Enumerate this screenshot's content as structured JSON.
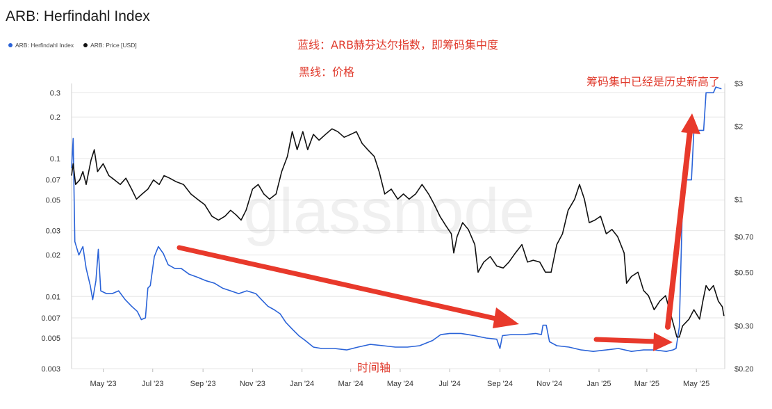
{
  "chart_data": {
    "type": "line",
    "title": "ARB: Herfindahl Index",
    "legend_position": "top-left",
    "grid": true,
    "watermark": "glassnode",
    "colors": {
      "herfindahl": "#2a63d8",
      "price": "#111111",
      "arrow": "#e8392b",
      "annotation": "#e03a2c",
      "grid": "#e6e6e6"
    },
    "x_range": [
      "2023-03-23",
      "2025-06-05"
    ],
    "x_ticks": [
      {
        "date": "2023-05-01",
        "label": "May '23"
      },
      {
        "date": "2023-07-01",
        "label": "Jul '23"
      },
      {
        "date": "2023-09-01",
        "label": "Sep '23"
      },
      {
        "date": "2023-11-01",
        "label": "Nov '23"
      },
      {
        "date": "2024-01-01",
        "label": "Jan '24"
      },
      {
        "date": "2024-03-01",
        "label": "Mar '24"
      },
      {
        "date": "2024-05-01",
        "label": "May '24"
      },
      {
        "date": "2024-07-01",
        "label": "Jul '24"
      },
      {
        "date": "2024-09-01",
        "label": "Sep '24"
      },
      {
        "date": "2024-11-01",
        "label": "Nov '24"
      },
      {
        "date": "2025-01-01",
        "label": "Jan '25"
      },
      {
        "date": "2025-03-01",
        "label": "Mar '25"
      },
      {
        "date": "2025-05-01",
        "label": "May '25"
      }
    ],
    "y_left": {
      "scale": "log",
      "range": [
        0.003,
        0.35
      ],
      "ticks": [
        {
          "value": 0.3,
          "label": "0.3"
        },
        {
          "value": 0.2,
          "label": "0.2"
        },
        {
          "value": 0.1,
          "label": "0.1"
        },
        {
          "value": 0.07,
          "label": "0.07"
        },
        {
          "value": 0.05,
          "label": "0.05"
        },
        {
          "value": 0.03,
          "label": "0.03"
        },
        {
          "value": 0.02,
          "label": "0.02"
        },
        {
          "value": 0.01,
          "label": "0.01"
        },
        {
          "value": 0.007,
          "label": "0.007"
        },
        {
          "value": 0.005,
          "label": "0.005"
        },
        {
          "value": 0.003,
          "label": "0.003"
        }
      ]
    },
    "y_right": {
      "scale": "log",
      "range": [
        0.2,
        3
      ],
      "ticks": [
        {
          "value": 3,
          "label": "$3"
        },
        {
          "value": 2,
          "label": "$2"
        },
        {
          "value": 1,
          "label": "$1"
        },
        {
          "value": 0.7,
          "label": "$0.70"
        },
        {
          "value": 0.5,
          "label": "$0.50"
        },
        {
          "value": 0.3,
          "label": "$0.30"
        },
        {
          "value": 0.2,
          "label": "$0.20"
        }
      ]
    },
    "series": [
      {
        "name": "ARB: Herfindahl Index",
        "axis": "left",
        "points": [
          [
            "2023-03-23",
            0.085
          ],
          [
            "2023-03-25",
            0.14
          ],
          [
            "2023-03-27",
            0.025
          ],
          [
            "2023-04-01",
            0.02
          ],
          [
            "2023-04-06",
            0.023
          ],
          [
            "2023-04-10",
            0.016
          ],
          [
            "2023-04-15",
            0.012
          ],
          [
            "2023-04-18",
            0.0095
          ],
          [
            "2023-04-22",
            0.013
          ],
          [
            "2023-04-25",
            0.022
          ],
          [
            "2023-04-28",
            0.011
          ],
          [
            "2023-05-05",
            0.0105
          ],
          [
            "2023-05-12",
            0.0105
          ],
          [
            "2023-05-20",
            0.011
          ],
          [
            "2023-05-28",
            0.0095
          ],
          [
            "2023-06-05",
            0.0085
          ],
          [
            "2023-06-12",
            0.0078
          ],
          [
            "2023-06-17",
            0.0068
          ],
          [
            "2023-06-22",
            0.007
          ],
          [
            "2023-06-25",
            0.0115
          ],
          [
            "2023-06-28",
            0.012
          ],
          [
            "2023-07-03",
            0.0195
          ],
          [
            "2023-07-08",
            0.023
          ],
          [
            "2023-07-14",
            0.0205
          ],
          [
            "2023-07-20",
            0.017
          ],
          [
            "2023-07-28",
            0.016
          ],
          [
            "2023-08-05",
            0.016
          ],
          [
            "2023-08-15",
            0.0145
          ],
          [
            "2023-08-25",
            0.0138
          ],
          [
            "2023-09-05",
            0.013
          ],
          [
            "2023-09-15",
            0.0125
          ],
          [
            "2023-09-25",
            0.0115
          ],
          [
            "2023-10-05",
            0.011
          ],
          [
            "2023-10-15",
            0.0105
          ],
          [
            "2023-10-25",
            0.011
          ],
          [
            "2023-11-05",
            0.0105
          ],
          [
            "2023-11-12",
            0.0095
          ],
          [
            "2023-11-20",
            0.0085
          ],
          [
            "2023-11-28",
            0.008
          ],
          [
            "2023-12-05",
            0.0075
          ],
          [
            "2023-12-12",
            0.0065
          ],
          [
            "2023-12-20",
            0.0058
          ],
          [
            "2023-12-28",
            0.0052
          ],
          [
            "2024-01-05",
            0.0048
          ],
          [
            "2024-01-15",
            0.0043
          ],
          [
            "2024-01-25",
            0.0042
          ],
          [
            "2024-02-10",
            0.0042
          ],
          [
            "2024-02-25",
            0.0041
          ],
          [
            "2024-03-10",
            0.0043
          ],
          [
            "2024-03-25",
            0.0045
          ],
          [
            "2024-04-10",
            0.0044
          ],
          [
            "2024-04-25",
            0.0043
          ],
          [
            "2024-05-10",
            0.0043
          ],
          [
            "2024-05-25",
            0.0044
          ],
          [
            "2024-06-10",
            0.0048
          ],
          [
            "2024-06-20",
            0.0053
          ],
          [
            "2024-07-01",
            0.0054
          ],
          [
            "2024-07-15",
            0.0054
          ],
          [
            "2024-08-01",
            0.0052
          ],
          [
            "2024-08-15",
            0.005
          ],
          [
            "2024-08-28",
            0.0049
          ],
          [
            "2024-09-01",
            0.0042
          ],
          [
            "2024-09-04",
            0.0052
          ],
          [
            "2024-09-15",
            0.0053
          ],
          [
            "2024-10-01",
            0.0053
          ],
          [
            "2024-10-15",
            0.0054
          ],
          [
            "2024-10-22",
            0.0053
          ],
          [
            "2024-10-24",
            0.0062
          ],
          [
            "2024-10-28",
            0.0062
          ],
          [
            "2024-11-01",
            0.0047
          ],
          [
            "2024-11-10",
            0.0044
          ],
          [
            "2024-11-25",
            0.0043
          ],
          [
            "2024-12-10",
            0.0041
          ],
          [
            "2024-12-25",
            0.004
          ],
          [
            "2025-01-10",
            0.0041
          ],
          [
            "2025-01-25",
            0.0042
          ],
          [
            "2025-02-10",
            0.004
          ],
          [
            "2025-02-25",
            0.0041
          ],
          [
            "2025-03-10",
            0.0041
          ],
          [
            "2025-03-25",
            0.004
          ],
          [
            "2025-04-02",
            0.0041
          ],
          [
            "2025-04-06",
            0.0042
          ],
          [
            "2025-04-10",
            0.006
          ],
          [
            "2025-04-14",
            0.05
          ],
          [
            "2025-04-17",
            0.07
          ],
          [
            "2025-04-25",
            0.07
          ],
          [
            "2025-04-28",
            0.16
          ],
          [
            "2025-05-10",
            0.16
          ],
          [
            "2025-05-13",
            0.3
          ],
          [
            "2025-05-22",
            0.3
          ],
          [
            "2025-05-25",
            0.33
          ],
          [
            "2025-06-01",
            0.32
          ]
        ]
      },
      {
        "name": "ARB: Price [USD]",
        "axis": "right",
        "points": [
          [
            "2023-03-23",
            1.25
          ],
          [
            "2023-03-25",
            1.4
          ],
          [
            "2023-03-28",
            1.15
          ],
          [
            "2023-04-02",
            1.2
          ],
          [
            "2023-04-06",
            1.3
          ],
          [
            "2023-04-10",
            1.15
          ],
          [
            "2023-04-16",
            1.45
          ],
          [
            "2023-04-20",
            1.6
          ],
          [
            "2023-04-24",
            1.3
          ],
          [
            "2023-05-01",
            1.4
          ],
          [
            "2023-05-08",
            1.25
          ],
          [
            "2023-05-15",
            1.2
          ],
          [
            "2023-05-22",
            1.15
          ],
          [
            "2023-05-29",
            1.22
          ],
          [
            "2023-06-05",
            1.1
          ],
          [
            "2023-06-11",
            1.0
          ],
          [
            "2023-06-18",
            1.05
          ],
          [
            "2023-06-25",
            1.1
          ],
          [
            "2023-07-02",
            1.2
          ],
          [
            "2023-07-09",
            1.15
          ],
          [
            "2023-07-15",
            1.25
          ],
          [
            "2023-07-22",
            1.22
          ],
          [
            "2023-07-30",
            1.18
          ],
          [
            "2023-08-08",
            1.15
          ],
          [
            "2023-08-17",
            1.05
          ],
          [
            "2023-08-25",
            1.0
          ],
          [
            "2023-09-03",
            0.95
          ],
          [
            "2023-09-12",
            0.85
          ],
          [
            "2023-09-20",
            0.82
          ],
          [
            "2023-09-28",
            0.85
          ],
          [
            "2023-10-05",
            0.9
          ],
          [
            "2023-10-12",
            0.86
          ],
          [
            "2023-10-18",
            0.82
          ],
          [
            "2023-10-24",
            0.9
          ],
          [
            "2023-11-01",
            1.1
          ],
          [
            "2023-11-08",
            1.15
          ],
          [
            "2023-11-15",
            1.05
          ],
          [
            "2023-11-22",
            1.0
          ],
          [
            "2023-11-30",
            1.05
          ],
          [
            "2023-12-07",
            1.3
          ],
          [
            "2023-12-14",
            1.5
          ],
          [
            "2023-12-20",
            1.9
          ],
          [
            "2023-12-26",
            1.6
          ],
          [
            "2024-01-02",
            1.9
          ],
          [
            "2024-01-08",
            1.6
          ],
          [
            "2024-01-15",
            1.85
          ],
          [
            "2024-01-22",
            1.75
          ],
          [
            "2024-01-30",
            1.85
          ],
          [
            "2024-02-07",
            1.95
          ],
          [
            "2024-02-14",
            1.9
          ],
          [
            "2024-02-22",
            1.8
          ],
          [
            "2024-03-01",
            1.85
          ],
          [
            "2024-03-08",
            1.9
          ],
          [
            "2024-03-15",
            1.7
          ],
          [
            "2024-03-22",
            1.6
          ],
          [
            "2024-03-30",
            1.5
          ],
          [
            "2024-04-05",
            1.3
          ],
          [
            "2024-04-12",
            1.05
          ],
          [
            "2024-04-20",
            1.1
          ],
          [
            "2024-04-28",
            1.0
          ],
          [
            "2024-05-05",
            1.05
          ],
          [
            "2024-05-12",
            1.0
          ],
          [
            "2024-05-20",
            1.05
          ],
          [
            "2024-05-28",
            1.15
          ],
          [
            "2024-06-05",
            1.05
          ],
          [
            "2024-06-12",
            0.95
          ],
          [
            "2024-06-19",
            0.85
          ],
          [
            "2024-06-26",
            0.78
          ],
          [
            "2024-07-03",
            0.72
          ],
          [
            "2024-07-06",
            0.6
          ],
          [
            "2024-07-10",
            0.7
          ],
          [
            "2024-07-17",
            0.8
          ],
          [
            "2024-07-24",
            0.75
          ],
          [
            "2024-08-01",
            0.65
          ],
          [
            "2024-08-05",
            0.5
          ],
          [
            "2024-08-12",
            0.55
          ],
          [
            "2024-08-20",
            0.58
          ],
          [
            "2024-08-28",
            0.53
          ],
          [
            "2024-09-05",
            0.52
          ],
          [
            "2024-09-12",
            0.55
          ],
          [
            "2024-09-20",
            0.6
          ],
          [
            "2024-09-28",
            0.65
          ],
          [
            "2024-10-05",
            0.55
          ],
          [
            "2024-10-12",
            0.56
          ],
          [
            "2024-10-20",
            0.55
          ],
          [
            "2024-10-27",
            0.5
          ],
          [
            "2024-11-03",
            0.5
          ],
          [
            "2024-11-10",
            0.65
          ],
          [
            "2024-11-17",
            0.72
          ],
          [
            "2024-11-24",
            0.9
          ],
          [
            "2024-12-02",
            1.0
          ],
          [
            "2024-12-08",
            1.15
          ],
          [
            "2024-12-14",
            1.0
          ],
          [
            "2024-12-20",
            0.8
          ],
          [
            "2024-12-27",
            0.82
          ],
          [
            "2025-01-03",
            0.85
          ],
          [
            "2025-01-10",
            0.72
          ],
          [
            "2025-01-17",
            0.75
          ],
          [
            "2025-01-24",
            0.7
          ],
          [
            "2025-02-01",
            0.6
          ],
          [
            "2025-02-04",
            0.45
          ],
          [
            "2025-02-10",
            0.48
          ],
          [
            "2025-02-18",
            0.5
          ],
          [
            "2025-02-25",
            0.42
          ],
          [
            "2025-03-03",
            0.4
          ],
          [
            "2025-03-10",
            0.35
          ],
          [
            "2025-03-17",
            0.38
          ],
          [
            "2025-03-24",
            0.4
          ],
          [
            "2025-03-31",
            0.33
          ],
          [
            "2025-04-07",
            0.27
          ],
          [
            "2025-04-10",
            0.27
          ],
          [
            "2025-04-14",
            0.3
          ],
          [
            "2025-04-22",
            0.32
          ],
          [
            "2025-04-28",
            0.35
          ],
          [
            "2025-05-05",
            0.32
          ],
          [
            "2025-05-09",
            0.38
          ],
          [
            "2025-05-13",
            0.44
          ],
          [
            "2025-05-17",
            0.42
          ],
          [
            "2025-05-22",
            0.44
          ],
          [
            "2025-05-28",
            0.38
          ],
          [
            "2025-06-02",
            0.36
          ],
          [
            "2025-06-04",
            0.33
          ]
        ]
      }
    ],
    "annotations": [
      {
        "text": "蓝线：ARB赫芬达尔指数，即筹码集中度"
      },
      {
        "text": "黑线：价格"
      },
      {
        "text": "筹码集中已经是历史新高了"
      },
      {
        "text": "时间轴"
      }
    ]
  }
}
